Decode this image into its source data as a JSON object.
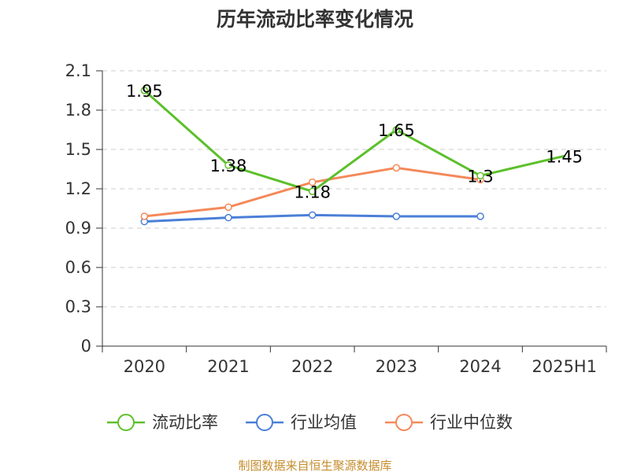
{
  "chart_data": {
    "type": "line",
    "title": "历年流动比率变化情况",
    "categories": [
      "2020",
      "2021",
      "2022",
      "2023",
      "2024",
      "2025H1"
    ],
    "ylim": [
      0,
      2.1
    ],
    "yticks": [
      0,
      0.3,
      0.6,
      0.9,
      1.2,
      1.5,
      1.8,
      2.1
    ],
    "ytick_labels": [
      "0",
      "0.3",
      "0.6",
      "0.9",
      "1.2",
      "1.5",
      "1.8",
      "2.1"
    ],
    "grid": true,
    "legend_position": "bottom",
    "series": [
      {
        "name": "流动比率",
        "values": [
          1.95,
          1.38,
          1.18,
          1.65,
          1.3,
          1.45
        ],
        "labels": [
          "1.95",
          "1.38",
          "1.18",
          "1.65",
          "1.3",
          "1.45"
        ],
        "color": "#5cc02b"
      },
      {
        "name": "行业均值",
        "values": [
          0.95,
          0.98,
          1.0,
          0.99,
          0.99,
          null
        ],
        "color": "#4a7fd8"
      },
      {
        "name": "行业中位数",
        "values": [
          0.99,
          1.06,
          1.25,
          1.36,
          1.27,
          null
        ],
        "color": "#f4895a"
      }
    ]
  },
  "footer": {
    "source": "制图数据来自恒生聚源数据库"
  }
}
